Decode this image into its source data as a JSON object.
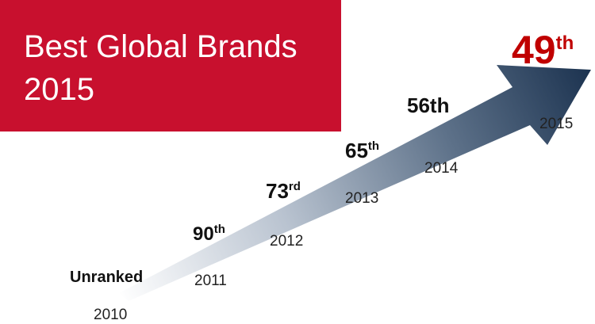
{
  "header": {
    "title_lines": [
      "Best Global Brands",
      "2015"
    ]
  },
  "milestones": [
    {
      "rank": "Unranked",
      "year": "2010"
    },
    {
      "rank": "90",
      "suffix": "th",
      "year": "2011"
    },
    {
      "rank": "73",
      "suffix": "rd",
      "year": "2012"
    },
    {
      "rank": "65",
      "suffix": "th",
      "year": "2013"
    },
    {
      "rank": "56th",
      "year": "2014"
    },
    {
      "rank": "49",
      "suffix": "th",
      "year": "2015"
    }
  ]
}
